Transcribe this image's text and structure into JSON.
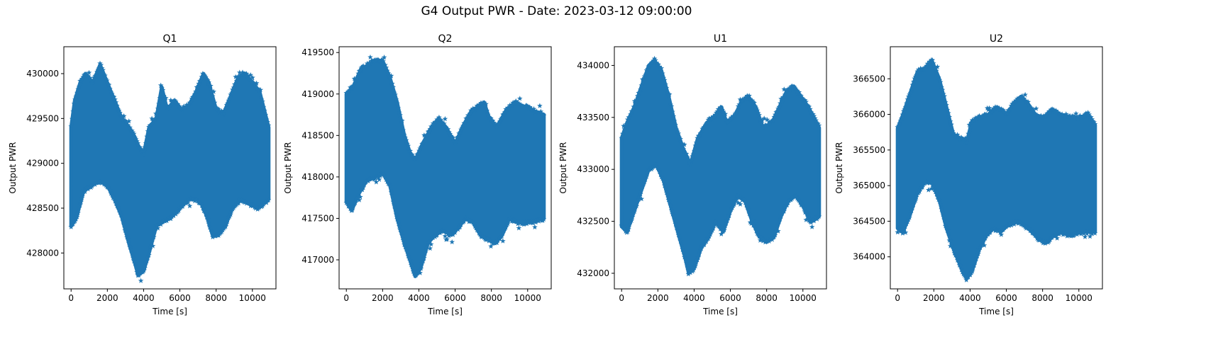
{
  "figure": {
    "title": "G4 Output PWR - Date: 2023-03-12 09:00:00"
  },
  "chart_data": [
    {
      "type": "scatter",
      "marker": "star",
      "color": "#1f77b4",
      "title": "Q1",
      "xlabel": "Time [s]",
      "ylabel": "Output PWR",
      "xlim": [
        -400,
        11300
      ],
      "ylim": [
        427600,
        430300
      ],
      "xticks": [
        0,
        2000,
        4000,
        6000,
        8000,
        10000
      ],
      "yticks": [
        428000,
        428500,
        429000,
        429500,
        430000
      ],
      "upper": [
        [
          0,
          429400
        ],
        [
          200,
          429700
        ],
        [
          500,
          429900
        ],
        [
          800,
          430000
        ],
        [
          1200,
          429900
        ],
        [
          1600,
          430100
        ],
        [
          2000,
          429900
        ],
        [
          2400,
          429700
        ],
        [
          2800,
          429500
        ],
        [
          3200,
          429400
        ],
        [
          3500,
          429300
        ],
        [
          3700,
          429200
        ],
        [
          4000,
          429100
        ],
        [
          4300,
          429400
        ],
        [
          4700,
          429500
        ],
        [
          5000,
          429850
        ],
        [
          5300,
          429600
        ],
        [
          5700,
          429700
        ],
        [
          6100,
          429600
        ],
        [
          6500,
          429650
        ],
        [
          6900,
          429800
        ],
        [
          7300,
          430000
        ],
        [
          7600,
          429900
        ],
        [
          8000,
          429600
        ],
        [
          8400,
          429550
        ],
        [
          8800,
          429750
        ],
        [
          9200,
          429950
        ],
        [
          9600,
          430000
        ],
        [
          10000,
          429900
        ],
        [
          10400,
          429800
        ],
        [
          10900,
          429400
        ]
      ],
      "lower": [
        [
          0,
          428300
        ],
        [
          300,
          428400
        ],
        [
          700,
          428700
        ],
        [
          1100,
          428750
        ],
        [
          1600,
          428800
        ],
        [
          2000,
          428750
        ],
        [
          2400,
          428600
        ],
        [
          2800,
          428400
        ],
        [
          3200,
          428100
        ],
        [
          3500,
          427900
        ],
        [
          3700,
          427750
        ],
        [
          4000,
          427800
        ],
        [
          4300,
          428000
        ],
        [
          4700,
          428300
        ],
        [
          5100,
          428350
        ],
        [
          5500,
          428400
        ],
        [
          6000,
          428500
        ],
        [
          6500,
          428600
        ],
        [
          6900,
          428600
        ],
        [
          7200,
          428550
        ],
        [
          7500,
          428400
        ],
        [
          7800,
          428200
        ],
        [
          8100,
          428200
        ],
        [
          8500,
          428300
        ],
        [
          8900,
          428500
        ],
        [
          9300,
          428600
        ],
        [
          9800,
          428550
        ],
        [
          10300,
          428500
        ],
        [
          10900,
          428600
        ]
      ]
    },
    {
      "type": "scatter",
      "marker": "star",
      "color": "#1f77b4",
      "title": "Q2",
      "xlabel": "Time [s]",
      "ylabel": "Output PWR",
      "xlim": [
        -400,
        11300
      ],
      "ylim": [
        416650,
        419570
      ],
      "xticks": [
        0,
        2000,
        4000,
        6000,
        8000,
        10000
      ],
      "yticks": [
        417000,
        417500,
        418000,
        418500,
        419000,
        419500
      ],
      "upper": [
        [
          0,
          419000
        ],
        [
          400,
          419100
        ],
        [
          800,
          419300
        ],
        [
          1200,
          419350
        ],
        [
          1600,
          419400
        ],
        [
          2000,
          419400
        ],
        [
          2400,
          419200
        ],
        [
          2800,
          418900
        ],
        [
          3200,
          418500
        ],
        [
          3500,
          418300
        ],
        [
          3800,
          418200
        ],
        [
          4200,
          418400
        ],
        [
          4700,
          418600
        ],
        [
          5100,
          418700
        ],
        [
          5500,
          418600
        ],
        [
          6000,
          418400
        ],
        [
          6400,
          418600
        ],
        [
          6900,
          418800
        ],
        [
          7300,
          418850
        ],
        [
          7600,
          418900
        ],
        [
          7900,
          418700
        ],
        [
          8300,
          418600
        ],
        [
          8800,
          418800
        ],
        [
          9300,
          418900
        ],
        [
          9800,
          418850
        ],
        [
          10300,
          418800
        ],
        [
          10900,
          418750
        ]
      ],
      "lower": [
        [
          0,
          417700
        ],
        [
          300,
          417600
        ],
        [
          700,
          417800
        ],
        [
          1100,
          417950
        ],
        [
          1600,
          418000
        ],
        [
          2000,
          418050
        ],
        [
          2400,
          417900
        ],
        [
          2800,
          417500
        ],
        [
          3200,
          417200
        ],
        [
          3500,
          417000
        ],
        [
          3800,
          416800
        ],
        [
          4100,
          416900
        ],
        [
          4500,
          417200
        ],
        [
          4900,
          417300
        ],
        [
          5300,
          417350
        ],
        [
          5800,
          417300
        ],
        [
          6200,
          417400
        ],
        [
          6600,
          417500
        ],
        [
          7000,
          417450
        ],
        [
          7400,
          417300
        ],
        [
          7800,
          417250
        ],
        [
          8200,
          417200
        ],
        [
          8600,
          417300
        ],
        [
          9000,
          417500
        ],
        [
          9500,
          417450
        ],
        [
          10000,
          417450
        ],
        [
          10900,
          417500
        ]
      ]
    },
    {
      "type": "scatter",
      "marker": "star",
      "color": "#1f77b4",
      "title": "U1",
      "xlabel": "Time [s]",
      "ylabel": "Output PWR",
      "xlim": [
        -400,
        11300
      ],
      "ylim": [
        431850,
        434180
      ],
      "xticks": [
        0,
        2000,
        4000,
        6000,
        8000,
        10000
      ],
      "yticks": [
        432000,
        432500,
        433000,
        433500,
        434000
      ],
      "upper": [
        [
          0,
          433300
        ],
        [
          300,
          433450
        ],
        [
          700,
          433600
        ],
        [
          1100,
          433800
        ],
        [
          1500,
          434000
        ],
        [
          1800,
          434050
        ],
        [
          2200,
          433950
        ],
        [
          2600,
          433700
        ],
        [
          3000,
          433400
        ],
        [
          3400,
          433200
        ],
        [
          3800,
          433050
        ],
        [
          4200,
          433300
        ],
        [
          4700,
          433450
        ],
        [
          5100,
          433500
        ],
        [
          5500,
          433600
        ],
        [
          5800,
          433450
        ],
        [
          6200,
          433500
        ],
        [
          6600,
          433650
        ],
        [
          7000,
          433700
        ],
        [
          7400,
          433600
        ],
        [
          7800,
          433400
        ],
        [
          8300,
          433450
        ],
        [
          8700,
          433600
        ],
        [
          9100,
          433750
        ],
        [
          9500,
          433800
        ],
        [
          9900,
          433700
        ],
        [
          10300,
          433600
        ],
        [
          10900,
          433400
        ]
      ],
      "lower": [
        [
          0,
          432450
        ],
        [
          300,
          432400
        ],
        [
          700,
          432600
        ],
        [
          1100,
          432800
        ],
        [
          1500,
          433000
        ],
        [
          1900,
          433050
        ],
        [
          2300,
          432900
        ],
        [
          2700,
          432650
        ],
        [
          3100,
          432400
        ],
        [
          3500,
          432150
        ],
        [
          3700,
          432000
        ],
        [
          4000,
          432050
        ],
        [
          4400,
          432250
        ],
        [
          4800,
          432350
        ],
        [
          5200,
          432500
        ],
        [
          5600,
          432400
        ],
        [
          6000,
          432600
        ],
        [
          6400,
          432750
        ],
        [
          6800,
          432700
        ],
        [
          7200,
          432500
        ],
        [
          7600,
          432350
        ],
        [
          8000,
          432300
        ],
        [
          8400,
          432350
        ],
        [
          8800,
          432550
        ],
        [
          9200,
          432700
        ],
        [
          9600,
          432750
        ],
        [
          10000,
          432650
        ],
        [
          10400,
          432500
        ],
        [
          10900,
          432550
        ]
      ]
    },
    {
      "type": "scatter",
      "marker": "star",
      "color": "#1f77b4",
      "title": "U2",
      "xlabel": "Time [s]",
      "ylabel": "Output PWR",
      "xlim": [
        -400,
        11300
      ],
      "ylim": [
        363550,
        366950
      ],
      "xticks": [
        0,
        2000,
        4000,
        6000,
        8000,
        10000
      ],
      "yticks": [
        364000,
        364500,
        365000,
        365500,
        366000,
        366500
      ],
      "upper": [
        [
          0,
          365800
        ],
        [
          300,
          366000
        ],
        [
          700,
          366300
        ],
        [
          1100,
          366600
        ],
        [
          1500,
          366650
        ],
        [
          1900,
          366750
        ],
        [
          2300,
          366500
        ],
        [
          2700,
          366100
        ],
        [
          3100,
          365700
        ],
        [
          3500,
          365650
        ],
        [
          3800,
          365600
        ],
        [
          4100,
          365900
        ],
        [
          4500,
          365950
        ],
        [
          5000,
          366000
        ],
        [
          5500,
          366100
        ],
        [
          6000,
          366000
        ],
        [
          6400,
          366150
        ],
        [
          6800,
          366250
        ],
        [
          7200,
          366150
        ],
        [
          7600,
          366000
        ],
        [
          8000,
          365950
        ],
        [
          8500,
          366050
        ],
        [
          9000,
          366000
        ],
        [
          9500,
          365950
        ],
        [
          10000,
          365950
        ],
        [
          10500,
          366000
        ],
        [
          10900,
          365850
        ]
      ],
      "lower": [
        [
          0,
          364400
        ],
        [
          300,
          364350
        ],
        [
          700,
          364600
        ],
        [
          1100,
          364900
        ],
        [
          1500,
          365050
        ],
        [
          1900,
          365050
        ],
        [
          2300,
          364800
        ],
        [
          2700,
          364400
        ],
        [
          3100,
          364100
        ],
        [
          3500,
          363850
        ],
        [
          3800,
          363700
        ],
        [
          4100,
          363800
        ],
        [
          4500,
          364100
        ],
        [
          4900,
          364300
        ],
        [
          5300,
          364400
        ],
        [
          5700,
          364350
        ],
        [
          6100,
          364450
        ],
        [
          6600,
          364500
        ],
        [
          7000,
          364450
        ],
        [
          7400,
          364350
        ],
        [
          7800,
          364250
        ],
        [
          8200,
          364200
        ],
        [
          8600,
          364300
        ],
        [
          9000,
          364350
        ],
        [
          9500,
          364300
        ],
        [
          10000,
          364350
        ],
        [
          10900,
          364350
        ]
      ]
    }
  ]
}
